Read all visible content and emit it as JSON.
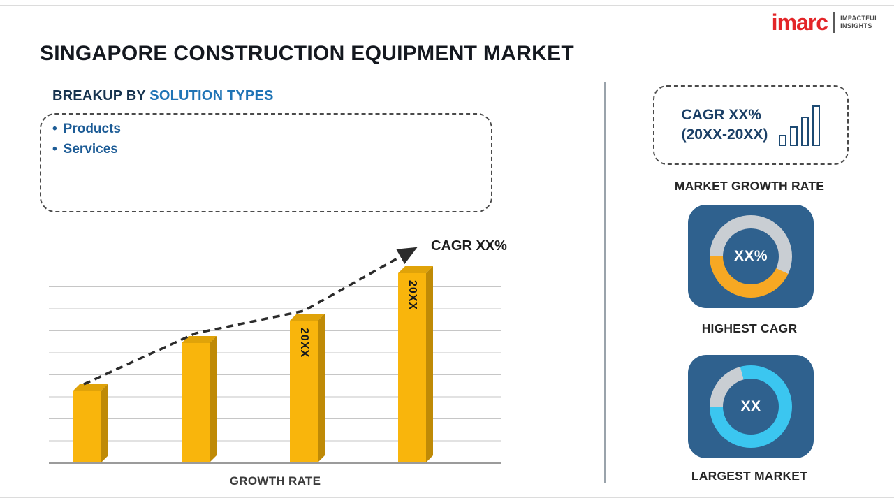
{
  "page": {
    "title": "SINGAPORE CONSTRUCTION EQUIPMENT MARKET"
  },
  "logo": {
    "brand": "imarc",
    "tagline_line1": "IMPACTFUL",
    "tagline_line2": "INSIGHTS"
  },
  "breakup": {
    "heading_prefix": "BREAKUP BY",
    "heading_highlight": "SOLUTION TYPES",
    "items": [
      {
        "label": "Products"
      },
      {
        "label": "Services"
      }
    ]
  },
  "chart_data": {
    "type": "bar",
    "bar_labels": [
      "",
      "",
      "20XX",
      "20XX"
    ],
    "values": [
      38,
      63,
      75,
      100
    ],
    "value_note": "relative heights; actual values shown as placeholders (20XX)",
    "xlabel": "GROWTH RATE",
    "trend_annotation": "CAGR XX%",
    "trend_style": "dashed-arrow-increasing",
    "bar_color": "#F9B50C",
    "grid": true,
    "legend": "none"
  },
  "sidebar": {
    "growth_card": {
      "line1": "CAGR XX%",
      "line2": "(20XX-20XX)"
    },
    "growth_card_label": "MARKET GROWTH RATE",
    "highest_cagr": {
      "value": "XX%",
      "label": "HIGHEST CAGR",
      "accent_color": "#F7A823"
    },
    "largest_market": {
      "value": "XX",
      "label": "LARGEST MARKET",
      "accent_color": "#3BC6F0"
    }
  },
  "colors": {
    "tile_background": "#2F618E",
    "donut_track": "#C9CED3",
    "heading_prefix": "#16324E",
    "heading_highlight": "#1F74B5",
    "brand_red": "#E32528"
  }
}
